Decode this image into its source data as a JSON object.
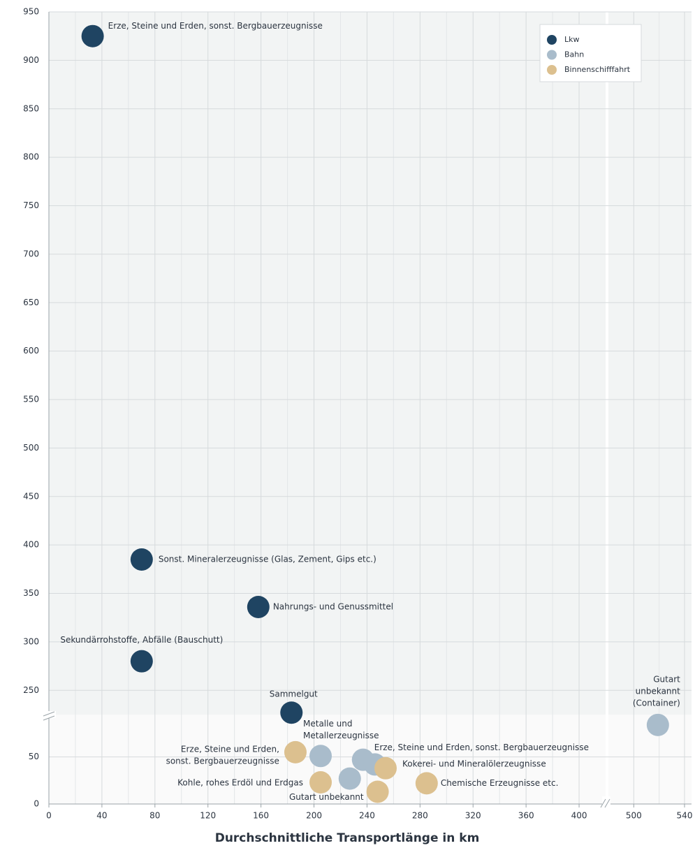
{
  "chart_data": {
    "type": "scatter",
    "x_axis_label": "Durchschnittliche Transportlänge in km",
    "xlim_segments": [
      [
        0,
        420
      ],
      [
        480,
        540
      ]
    ],
    "xticks_segments": [
      [
        0,
        40,
        80,
        120,
        160,
        200,
        240,
        280,
        320,
        360,
        400
      ],
      [
        500,
        540
      ]
    ],
    "ylim_segments": [
      [
        0,
        95
      ],
      [
        225,
        950
      ]
    ],
    "yticks_segments": [
      [
        0,
        50
      ],
      [
        250,
        300,
        350,
        400,
        450,
        500,
        550,
        600,
        650,
        700,
        750,
        800,
        850,
        900,
        950
      ]
    ],
    "grid": true,
    "legend": "top-right",
    "series": [
      {
        "name": "Lkw",
        "color": "#1f4462",
        "x": [
          33,
          70,
          158,
          70,
          183
        ],
        "values": [
          925,
          385,
          336,
          280,
          227
        ],
        "labels": [
          [
            "Erze, Steine und Erden, sonst. Bergbauerzeugnisse"
          ],
          [
            "Sonst. Mineralerzeugnisse (Glas, Zement, Gips etc.)"
          ],
          [
            "Nahrungs- und Genussmittel"
          ],
          [
            "Sekundärrohstoffe, Abfälle (Bauschutt)"
          ],
          [
            "Sammelgut"
          ]
        ]
      },
      {
        "name": "Bahn",
        "color": "#a9bccb",
        "x": [
          205,
          237,
          246,
          227,
          519
        ],
        "values": [
          51,
          47,
          42,
          27,
          84
        ],
        "labels": [
          [
            "Metalle und",
            "Metallerzeugnisse"
          ],
          [
            "Erze, Steine und Erden, sonst. Bergbauerzeugnisse"
          ],
          null,
          null,
          [
            "Gutart",
            "unbekannt",
            "(Container)"
          ]
        ]
      },
      {
        "name": "Binnenschifffahrt",
        "color": "#dcc08f",
        "x": [
          186,
          205,
          248,
          254,
          285
        ],
        "values": [
          55,
          23,
          13,
          38,
          22
        ],
        "labels": [
          [
            "Erze, Steine und Erden,",
            "sonst. Bergbauerzeugnisse"
          ],
          [
            "Kohle, rohes Erdöl und Erdgas"
          ],
          [
            "Gutart unbekannt"
          ],
          [
            "Kokerei- und Mineralölerzeugnisse"
          ],
          [
            "Chemische Erzeugnisse etc."
          ]
        ]
      }
    ]
  }
}
